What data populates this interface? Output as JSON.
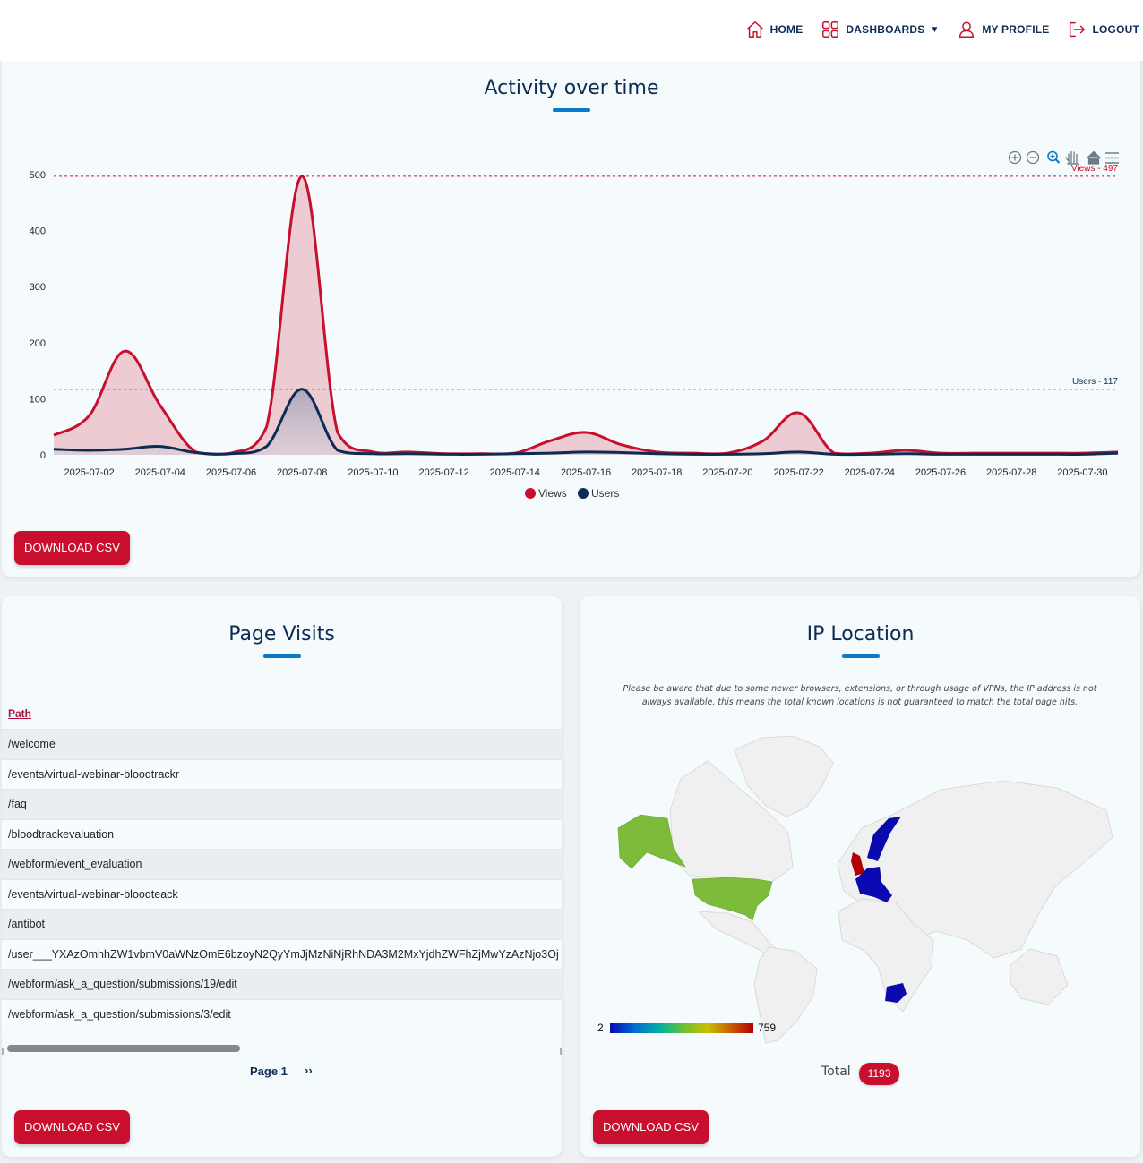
{
  "nav": {
    "items": [
      {
        "label": "HOME",
        "icon": "home-icon"
      },
      {
        "label": "DASHBOARDS",
        "icon": "grid-icon",
        "caret": "▼"
      },
      {
        "label": "MY PROFILE",
        "icon": "user-icon"
      },
      {
        "label": "LOGOUT",
        "icon": "logout-icon"
      }
    ]
  },
  "activity": {
    "title": "Activity over time",
    "download_label": "DOWNLOAD CSV",
    "colors": {
      "views": "#c8102e",
      "users": "#0d2c54"
    }
  },
  "chart_data": {
    "type": "area",
    "title": "",
    "xlabel": "",
    "ylabel": "",
    "ylim": [
      0,
      500
    ],
    "yticks": [
      0,
      100,
      200,
      300,
      400,
      500
    ],
    "x_tick_labels": [
      "2025-07-02",
      "2025-07-04",
      "2025-07-06",
      "2025-07-08",
      "2025-07-10",
      "2025-07-12",
      "2025-07-14",
      "2025-07-16",
      "2025-07-18",
      "2025-07-20",
      "2025-07-22",
      "2025-07-24",
      "2025-07-26",
      "2025-07-28",
      "2025-07-30"
    ],
    "x": [
      "2025-07-01",
      "2025-07-02",
      "2025-07-03",
      "2025-07-04",
      "2025-07-05",
      "2025-07-06",
      "2025-07-07",
      "2025-07-08",
      "2025-07-09",
      "2025-07-10",
      "2025-07-11",
      "2025-07-12",
      "2025-07-13",
      "2025-07-14",
      "2025-07-15",
      "2025-07-16",
      "2025-07-17",
      "2025-07-18",
      "2025-07-19",
      "2025-07-20",
      "2025-07-21",
      "2025-07-22",
      "2025-07-23",
      "2025-07-24",
      "2025-07-25",
      "2025-07-26",
      "2025-07-27",
      "2025-07-28",
      "2025-07-29",
      "2025-07-30",
      "2025-07-31"
    ],
    "series": [
      {
        "name": "Views",
        "values": [
          35,
          70,
          185,
          88,
          5,
          3,
          50,
          497,
          40,
          5,
          5,
          2,
          2,
          3,
          25,
          40,
          18,
          5,
          3,
          3,
          25,
          75,
          3,
          3,
          8,
          3,
          3,
          3,
          3,
          3,
          5
        ]
      },
      {
        "name": "Users",
        "values": [
          10,
          8,
          10,
          15,
          4,
          2,
          15,
          117,
          8,
          2,
          2,
          1,
          1,
          2,
          3,
          5,
          4,
          2,
          1,
          1,
          2,
          5,
          1,
          1,
          2,
          1,
          1,
          1,
          1,
          1,
          3
        ]
      }
    ],
    "annotations": [
      {
        "label": "Views - 497",
        "y": 497,
        "series": "Views"
      },
      {
        "label": "Users - 117",
        "y": 117,
        "series": "Users"
      }
    ],
    "legend": "bottom-center"
  },
  "page_visits": {
    "title": "Page Visits",
    "column_header": "Path",
    "rows": [
      "/welcome",
      "/events/virtual-webinar-bloodtrackr",
      "/faq",
      "/bloodtrackevaluation",
      "/webform/event_evaluation",
      "/events/virtual-webinar-bloodteack",
      "/antibot",
      "/user___YXAzOmhhZW1vbmV0aWNzOmE6bzoyN2QyYmJjMzNiNjRhNDA3M2MxYjdhZWFhZjMwYzAzNjo3Oj",
      "/webform/ask_a_question/submissions/19/edit",
      "/webform/ask_a_question/submissions/3/edit"
    ],
    "pager_label": "Page 1",
    "next_label": "››",
    "download_label": "DOWNLOAD CSV"
  },
  "ip_location": {
    "title": "IP Location",
    "note": "Please be aware that due to some newer browsers, extensions, or through usage of VPNs, the IP address is not always available, this means the total known locations is not guaranteed to match the total page hits.",
    "scale_min": "2",
    "scale_max": "759",
    "total_label": "Total",
    "total_value": "1193",
    "download_label": "DOWNLOAD CSV",
    "colors": {
      "usa": "#7dbb3a",
      "uk": "#b00000",
      "europe": "#0a0ab0",
      "land": "#f0f0f0"
    }
  }
}
